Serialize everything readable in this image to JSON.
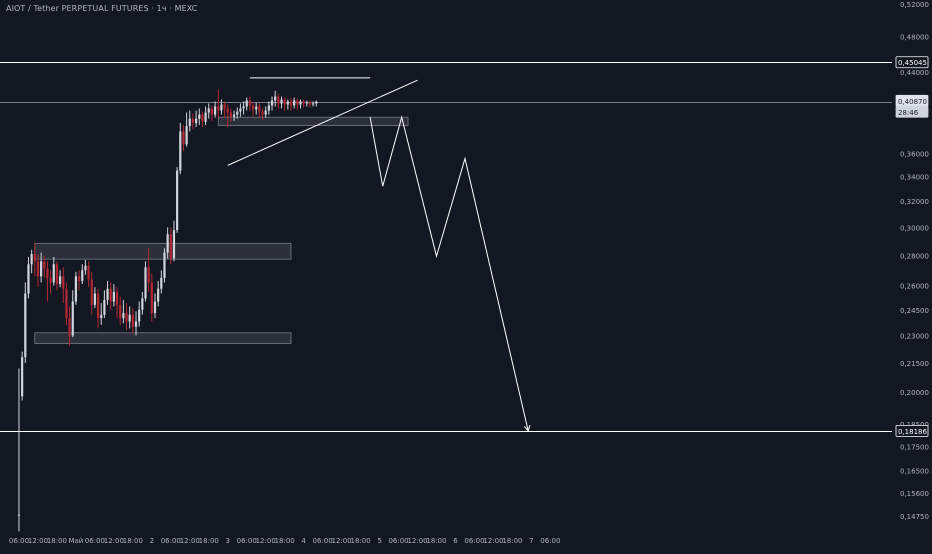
{
  "symbol_title": "AIOT / Tether PERPETUAL FUTURES · 1ч · MEXC",
  "colors": {
    "background": "#131722",
    "text": "#b2b5be",
    "up": "#d1d4dc",
    "down": "#b22833",
    "zone": "#434651",
    "line": "#ffffff",
    "last_price_tag": "#e0e3eb"
  },
  "chart_data": {
    "type": "candlestick",
    "y_axis": {
      "scale": "log",
      "range": [
        0.1425,
        0.525
      ],
      "tick_labels": [
        "0,52000",
        "0,48000",
        "0,44000",
        "0,40000",
        "0,36000",
        "0,34000",
        "0,32000",
        "0,30000",
        "0,28000",
        "0,26000",
        "0,24500",
        "0,23000",
        "0,21500",
        "0,20000",
        "0,18500",
        "0,17500",
        "0,16500",
        "0,15600",
        "0,14750"
      ],
      "tick_values": [
        0.52,
        0.48,
        0.44,
        0.4,
        0.36,
        0.34,
        0.32,
        0.3,
        0.28,
        0.26,
        0.245,
        0.23,
        0.215,
        0.2,
        0.185,
        0.175,
        0.165,
        0.156,
        0.1475
      ]
    },
    "x_axis": {
      "range": [
        -6,
        276
      ],
      "tick_labels": [
        "06:00",
        "12:00",
        "18:00",
        "Май",
        "06:00",
        "12:00",
        "18:00",
        "2",
        "06:00",
        "12:00",
        "18:00",
        "3",
        "06:00",
        "12:00",
        "18:00",
        "4",
        "06:00",
        "12:00",
        "18:00",
        "5",
        "06:00",
        "12:00",
        "18:00",
        "6",
        "06:00",
        "12:00",
        "18:00",
        "7",
        "06:00"
      ],
      "tick_hours": [
        0,
        6,
        12,
        18,
        24,
        30,
        36,
        42,
        48,
        54,
        60,
        66,
        72,
        78,
        84,
        90,
        96,
        102,
        108,
        114,
        120,
        126,
        132,
        138,
        144,
        150,
        156,
        162,
        168
      ]
    },
    "price_labels": [
      {
        "text": "0,45045",
        "value": 0.45045,
        "style": "outline"
      },
      {
        "text": "0,40870",
        "value": 0.4087,
        "style": "last"
      },
      {
        "text": "28:46",
        "value": 0.4087,
        "style": "timer"
      },
      {
        "text": "0,18186",
        "value": 0.18186,
        "style": "outline"
      }
    ],
    "horizontal_lines": [
      {
        "value": 0.45045,
        "color": "#ffffff"
      },
      {
        "value": 0.4087,
        "color": "#787b86"
      },
      {
        "value": 0.18186,
        "color": "#ffffff"
      }
    ],
    "zones": [
      {
        "x0": 5,
        "x1": 86,
        "y0": 0.2775,
        "y1": 0.2885
      },
      {
        "x0": 5,
        "x1": 86,
        "y0": 0.2255,
        "y1": 0.2315
      },
      {
        "x0": 63,
        "x1": 123,
        "y0": 0.3855,
        "y1": 0.3935
      }
    ],
    "trendlines": [
      {
        "points": [
          [
            66,
            0.3495
          ],
          [
            126,
            0.431
          ]
        ],
        "color": "#ffffff"
      },
      {
        "points": [
          [
            73,
            0.4335
          ],
          [
            111,
            0.4335
          ]
        ],
        "color": "#ffffff"
      }
    ],
    "projection_path": {
      "points": [
        [
          111,
          0.3935
        ],
        [
          115,
          0.332
        ],
        [
          121,
          0.3935
        ],
        [
          132,
          0.2795
        ],
        [
          141,
          0.3555
        ],
        [
          161,
          0.18186
        ]
      ],
      "color": "#ffffff",
      "arrow": true
    },
    "series": [
      {
        "name": "",
        "ohlc": [
          [
            0.148,
            0.148,
            0.142,
            0.212
          ],
          [
            0.198,
            0.218,
            0.196,
            0.221
          ],
          [
            0.218,
            0.255,
            0.215,
            0.262
          ],
          [
            0.255,
            0.274,
            0.252,
            0.279
          ],
          [
            0.274,
            0.281,
            0.268,
            0.284
          ],
          [
            0.281,
            0.276,
            0.266,
            0.289
          ],
          [
            0.276,
            0.266,
            0.259,
            0.281
          ],
          [
            0.266,
            0.276,
            0.262,
            0.282
          ],
          [
            0.276,
            0.271,
            0.265,
            0.28
          ],
          [
            0.271,
            0.265,
            0.25,
            0.276
          ],
          [
            0.265,
            0.262,
            0.255,
            0.27
          ],
          [
            0.262,
            0.274,
            0.26,
            0.279
          ],
          [
            0.274,
            0.261,
            0.257,
            0.276
          ],
          [
            0.261,
            0.266,
            0.259,
            0.27
          ],
          [
            0.266,
            0.258,
            0.249,
            0.272
          ],
          [
            0.258,
            0.24,
            0.236,
            0.262
          ],
          [
            0.24,
            0.23,
            0.224,
            0.247
          ],
          [
            0.23,
            0.25,
            0.229,
            0.257
          ],
          [
            0.25,
            0.266,
            0.248,
            0.269
          ],
          [
            0.266,
            0.263,
            0.257,
            0.27
          ],
          [
            0.263,
            0.27,
            0.261,
            0.274
          ],
          [
            0.27,
            0.273,
            0.267,
            0.277
          ],
          [
            0.273,
            0.264,
            0.259,
            0.276
          ],
          [
            0.264,
            0.248,
            0.242,
            0.269
          ],
          [
            0.248,
            0.255,
            0.246,
            0.259
          ],
          [
            0.255,
            0.24,
            0.234,
            0.258
          ],
          [
            0.24,
            0.242,
            0.236,
            0.249
          ],
          [
            0.242,
            0.251,
            0.24,
            0.257
          ],
          [
            0.251,
            0.258,
            0.248,
            0.263
          ],
          [
            0.258,
            0.25,
            0.245,
            0.262
          ],
          [
            0.25,
            0.256,
            0.247,
            0.261
          ],
          [
            0.256,
            0.248,
            0.24,
            0.259
          ],
          [
            0.248,
            0.24,
            0.236,
            0.253
          ],
          [
            0.24,
            0.243,
            0.237,
            0.251
          ],
          [
            0.243,
            0.238,
            0.233,
            0.249
          ],
          [
            0.238,
            0.242,
            0.234,
            0.247
          ],
          [
            0.242,
            0.235,
            0.231,
            0.246
          ],
          [
            0.235,
            0.238,
            0.23,
            0.244
          ],
          [
            0.238,
            0.245,
            0.235,
            0.25
          ],
          [
            0.245,
            0.252,
            0.242,
            0.256
          ],
          [
            0.252,
            0.272,
            0.25,
            0.276
          ],
          [
            0.272,
            0.262,
            0.256,
            0.285
          ],
          [
            0.262,
            0.243,
            0.238,
            0.268
          ],
          [
            0.243,
            0.25,
            0.24,
            0.255
          ],
          [
            0.25,
            0.258,
            0.247,
            0.263
          ],
          [
            0.258,
            0.265,
            0.255,
            0.27
          ],
          [
            0.265,
            0.282,
            0.262,
            0.285
          ],
          [
            0.282,
            0.295,
            0.278,
            0.3
          ],
          [
            0.295,
            0.278,
            0.274,
            0.3
          ],
          [
            0.278,
            0.298,
            0.276,
            0.305
          ],
          [
            0.298,
            0.345,
            0.296,
            0.348
          ],
          [
            0.345,
            0.38,
            0.342,
            0.388
          ],
          [
            0.38,
            0.368,
            0.362,
            0.386
          ],
          [
            0.368,
            0.385,
            0.366,
            0.398
          ],
          [
            0.385,
            0.392,
            0.38,
            0.4
          ],
          [
            0.392,
            0.388,
            0.382,
            0.397
          ],
          [
            0.388,
            0.392,
            0.384,
            0.4
          ],
          [
            0.392,
            0.396,
            0.386,
            0.402
          ],
          [
            0.396,
            0.389,
            0.384,
            0.399
          ],
          [
            0.389,
            0.398,
            0.386,
            0.404
          ],
          [
            0.398,
            0.402,
            0.392,
            0.407
          ],
          [
            0.402,
            0.396,
            0.39,
            0.405
          ],
          [
            0.396,
            0.404,
            0.393,
            0.409
          ],
          [
            0.404,
            0.4,
            0.393,
            0.421
          ],
          [
            0.4,
            0.406,
            0.396,
            0.411
          ],
          [
            0.406,
            0.402,
            0.393,
            0.409
          ],
          [
            0.402,
            0.398,
            0.384,
            0.406
          ],
          [
            0.398,
            0.394,
            0.389,
            0.402
          ],
          [
            0.394,
            0.396,
            0.39,
            0.4
          ],
          [
            0.396,
            0.399,
            0.392,
            0.403
          ],
          [
            0.399,
            0.402,
            0.394,
            0.407
          ],
          [
            0.402,
            0.404,
            0.396,
            0.409
          ],
          [
            0.404,
            0.41,
            0.4,
            0.413
          ],
          [
            0.41,
            0.405,
            0.4,
            0.414
          ],
          [
            0.405,
            0.401,
            0.395,
            0.408
          ],
          [
            0.401,
            0.404,
            0.396,
            0.408
          ],
          [
            0.404,
            0.399,
            0.393,
            0.407
          ],
          [
            0.399,
            0.396,
            0.391,
            0.402
          ],
          [
            0.396,
            0.4,
            0.393,
            0.404
          ],
          [
            0.4,
            0.405,
            0.396,
            0.409
          ],
          [
            0.405,
            0.41,
            0.4,
            0.414
          ],
          [
            0.41,
            0.414,
            0.404,
            0.42
          ],
          [
            0.414,
            0.407,
            0.402,
            0.417
          ],
          [
            0.407,
            0.411,
            0.402,
            0.414
          ],
          [
            0.411,
            0.406,
            0.4,
            0.413
          ],
          [
            0.406,
            0.409,
            0.401,
            0.411
          ],
          [
            0.409,
            0.405,
            0.4,
            0.412
          ],
          [
            0.405,
            0.41,
            0.402,
            0.413
          ],
          [
            0.41,
            0.406,
            0.401,
            0.412
          ],
          [
            0.406,
            0.409,
            0.402,
            0.411
          ],
          [
            0.409,
            0.407,
            0.403,
            0.411
          ],
          [
            0.407,
            0.408,
            0.404,
            0.41
          ],
          [
            0.408,
            0.406,
            0.403,
            0.41
          ],
          [
            0.406,
            0.407,
            0.404,
            0.409
          ],
          [
            0.407,
            0.4087,
            0.404,
            0.41
          ]
        ]
      }
    ]
  }
}
